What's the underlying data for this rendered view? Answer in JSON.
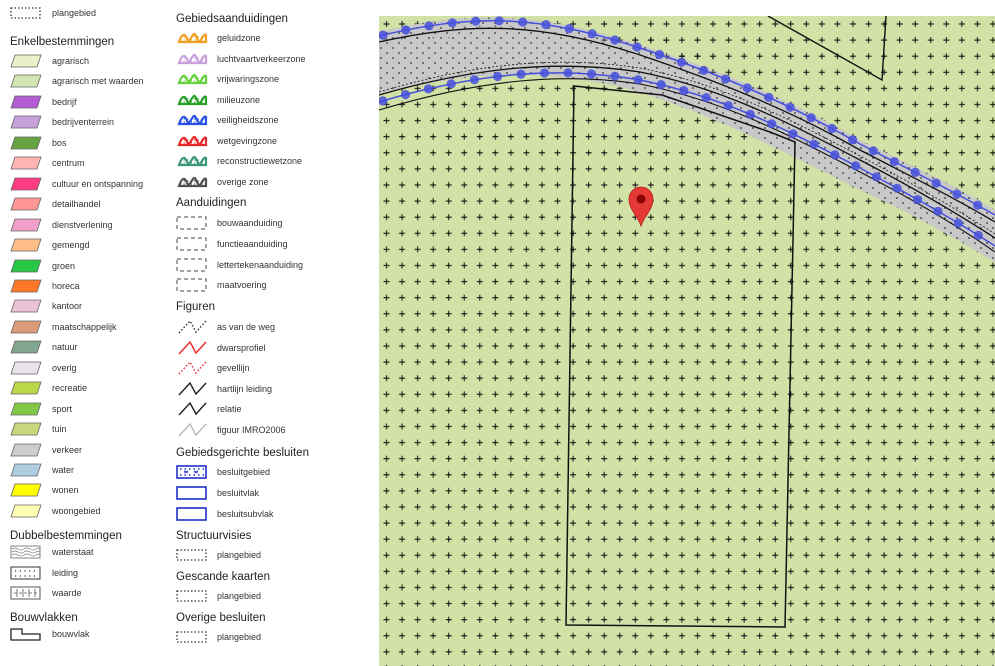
{
  "legend": {
    "top_item": {
      "label": "plangebied",
      "icon": "dotted-rect-icon"
    },
    "col1": {
      "enkel": {
        "title": "Enkelbestemmingen",
        "items": [
          {
            "label": "agrarisch",
            "color": "#eaf0c8"
          },
          {
            "label": "agrarisch met waarden",
            "color": "#d2e6b4"
          },
          {
            "label": "bedrijf",
            "color": "#b35bd2"
          },
          {
            "label": "bedrijventerrein",
            "color": "#c8a0dc"
          },
          {
            "label": "bos",
            "color": "#65a340"
          },
          {
            "label": "centrum",
            "color": "#ffb4b4"
          },
          {
            "label": "cultuur en ontspanning",
            "color": "#ff3c82"
          },
          {
            "label": "detailhandel",
            "color": "#ff9696"
          },
          {
            "label": "dienstverlening",
            "color": "#f0a0c8"
          },
          {
            "label": "gemengd",
            "color": "#ffbe87"
          },
          {
            "label": "groen",
            "color": "#28c846"
          },
          {
            "label": "horeca",
            "color": "#ff7828"
          },
          {
            "label": "kantoor",
            "color": "#ebc3d7"
          },
          {
            "label": "maatschappelijk",
            "color": "#dc9b78"
          },
          {
            "label": "natuur",
            "color": "#82a591"
          },
          {
            "label": "overig",
            "color": "#ebe1eb"
          },
          {
            "label": "recreatie",
            "color": "#b9d746"
          },
          {
            "label": "sport",
            "color": "#82c846"
          },
          {
            "label": "tuin",
            "color": "#c8d77d"
          },
          {
            "label": "verkeer",
            "color": "#cdcdcd"
          },
          {
            "label": "water",
            "color": "#afcde1"
          },
          {
            "label": "wonen",
            "color": "#ffff00"
          },
          {
            "label": "woongebied",
            "color": "#ffffb4"
          }
        ]
      },
      "dubbel": {
        "title": "Dubbelbestemmingen",
        "items": [
          {
            "label": "waterstaat",
            "icon": "wave-pattern-icon"
          },
          {
            "label": "leiding",
            "icon": "dotted-box-icon"
          },
          {
            "label": "waarde",
            "icon": "cross-box-icon"
          }
        ]
      },
      "bouwvlakken": {
        "title": "Bouwvlakken",
        "items": [
          {
            "label": "bouwvlak",
            "icon": "bouwvlak-outline-icon"
          }
        ]
      }
    },
    "col2": {
      "gebied": {
        "title": "Gebiedsaanduidingen",
        "items": [
          {
            "label": "geluidzone",
            "color": "#f0a020"
          },
          {
            "label": "luchtvaartverkeerzone",
            "color": "#c8a0dc"
          },
          {
            "label": "vrijwaringszone",
            "color": "#64d23c"
          },
          {
            "label": "milieuzone",
            "color": "#28a028"
          },
          {
            "label": "veiligheidszone",
            "color": "#2850e6"
          },
          {
            "label": "wetgevingzone",
            "color": "#e62828"
          },
          {
            "label": "reconstructiewetzone",
            "color": "#3c9678"
          },
          {
            "label": "overige zone",
            "color": "#505050"
          }
        ]
      },
      "aand": {
        "title": "Aanduidingen",
        "items": [
          {
            "label": "bouwaanduiding"
          },
          {
            "label": "functieaanduiding"
          },
          {
            "label": "lettertekenaanduiding"
          },
          {
            "label": "maatvoering"
          }
        ]
      },
      "figuren": {
        "title": "Figuren",
        "items": [
          {
            "label": "as van de weg",
            "color": "#333333",
            "style": "dotted"
          },
          {
            "label": "dwarsprofiel",
            "color": "#e62828",
            "style": "solid"
          },
          {
            "label": "gevellijn",
            "color": "#e62828",
            "style": "dotted"
          },
          {
            "label": "hartlijn leiding",
            "color": "#222222",
            "style": "solid"
          },
          {
            "label": "relatie",
            "color": "#222222",
            "style": "solid"
          },
          {
            "label": "figuur IMRO2006",
            "color": "#bbbbbb",
            "style": "solid"
          }
        ]
      },
      "besluiten": {
        "title": "Gebiedsgerichte besluiten",
        "items": [
          {
            "label": "besluitgebied",
            "icon": "blue-dotted-box-icon"
          },
          {
            "label": "besluitvlak",
            "icon": "blue-rect-icon"
          },
          {
            "label": "besluitsubvlak",
            "icon": "blue-rect-icon"
          }
        ]
      },
      "struct": {
        "title": "Structuurvisies",
        "items": [
          {
            "label": "plangebied",
            "icon": "dotted-rect-icon"
          }
        ]
      },
      "gescand": {
        "title": "Gescande kaarten",
        "items": [
          {
            "label": "plangebied",
            "icon": "dotted-rect-icon"
          }
        ]
      },
      "overige": {
        "title": "Overige besluiten",
        "items": [
          {
            "label": "plangebied",
            "icon": "dotted-rect-icon"
          }
        ]
      }
    }
  },
  "map": {
    "background_color": "#d2e1a5",
    "road_color": "#c8c8c8",
    "zone_line_color": "#4650dc",
    "marker_color": "#e53935",
    "marker_icon": "map-pin-icon"
  }
}
